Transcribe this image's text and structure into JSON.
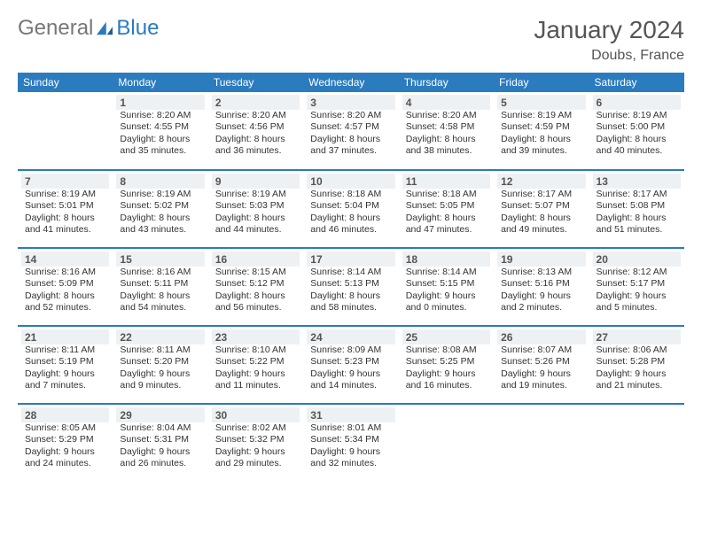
{
  "brand": {
    "part1": "General",
    "part2": "Blue"
  },
  "title": "January 2024",
  "location": "Doubs, France",
  "colors": {
    "header_bg": "#2b7bbf",
    "header_text": "#ffffff",
    "daynum_bg": "#eef1f3",
    "rule": "#2b7bbf",
    "text": "#333333",
    "title_text": "#555555"
  },
  "typography": {
    "title_fontsize": 28,
    "location_fontsize": 16,
    "header_fontsize": 12,
    "daynum_fontsize": 12,
    "body_fontsize": 10.5
  },
  "days_of_week": [
    "Sunday",
    "Monday",
    "Tuesday",
    "Wednesday",
    "Thursday",
    "Friday",
    "Saturday"
  ],
  "weeks": [
    [
      null,
      {
        "n": "1",
        "sunrise": "8:20 AM",
        "sunset": "4:55 PM",
        "daylight": "8 hours and 35 minutes."
      },
      {
        "n": "2",
        "sunrise": "8:20 AM",
        "sunset": "4:56 PM",
        "daylight": "8 hours and 36 minutes."
      },
      {
        "n": "3",
        "sunrise": "8:20 AM",
        "sunset": "4:57 PM",
        "daylight": "8 hours and 37 minutes."
      },
      {
        "n": "4",
        "sunrise": "8:20 AM",
        "sunset": "4:58 PM",
        "daylight": "8 hours and 38 minutes."
      },
      {
        "n": "5",
        "sunrise": "8:19 AM",
        "sunset": "4:59 PM",
        "daylight": "8 hours and 39 minutes."
      },
      {
        "n": "6",
        "sunrise": "8:19 AM",
        "sunset": "5:00 PM",
        "daylight": "8 hours and 40 minutes."
      }
    ],
    [
      {
        "n": "7",
        "sunrise": "8:19 AM",
        "sunset": "5:01 PM",
        "daylight": "8 hours and 41 minutes."
      },
      {
        "n": "8",
        "sunrise": "8:19 AM",
        "sunset": "5:02 PM",
        "daylight": "8 hours and 43 minutes."
      },
      {
        "n": "9",
        "sunrise": "8:19 AM",
        "sunset": "5:03 PM",
        "daylight": "8 hours and 44 minutes."
      },
      {
        "n": "10",
        "sunrise": "8:18 AM",
        "sunset": "5:04 PM",
        "daylight": "8 hours and 46 minutes."
      },
      {
        "n": "11",
        "sunrise": "8:18 AM",
        "sunset": "5:05 PM",
        "daylight": "8 hours and 47 minutes."
      },
      {
        "n": "12",
        "sunrise": "8:17 AM",
        "sunset": "5:07 PM",
        "daylight": "8 hours and 49 minutes."
      },
      {
        "n": "13",
        "sunrise": "8:17 AM",
        "sunset": "5:08 PM",
        "daylight": "8 hours and 51 minutes."
      }
    ],
    [
      {
        "n": "14",
        "sunrise": "8:16 AM",
        "sunset": "5:09 PM",
        "daylight": "8 hours and 52 minutes."
      },
      {
        "n": "15",
        "sunrise": "8:16 AM",
        "sunset": "5:11 PM",
        "daylight": "8 hours and 54 minutes."
      },
      {
        "n": "16",
        "sunrise": "8:15 AM",
        "sunset": "5:12 PM",
        "daylight": "8 hours and 56 minutes."
      },
      {
        "n": "17",
        "sunrise": "8:14 AM",
        "sunset": "5:13 PM",
        "daylight": "8 hours and 58 minutes."
      },
      {
        "n": "18",
        "sunrise": "8:14 AM",
        "sunset": "5:15 PM",
        "daylight": "9 hours and 0 minutes."
      },
      {
        "n": "19",
        "sunrise": "8:13 AM",
        "sunset": "5:16 PM",
        "daylight": "9 hours and 2 minutes."
      },
      {
        "n": "20",
        "sunrise": "8:12 AM",
        "sunset": "5:17 PM",
        "daylight": "9 hours and 5 minutes."
      }
    ],
    [
      {
        "n": "21",
        "sunrise": "8:11 AM",
        "sunset": "5:19 PM",
        "daylight": "9 hours and 7 minutes."
      },
      {
        "n": "22",
        "sunrise": "8:11 AM",
        "sunset": "5:20 PM",
        "daylight": "9 hours and 9 minutes."
      },
      {
        "n": "23",
        "sunrise": "8:10 AM",
        "sunset": "5:22 PM",
        "daylight": "9 hours and 11 minutes."
      },
      {
        "n": "24",
        "sunrise": "8:09 AM",
        "sunset": "5:23 PM",
        "daylight": "9 hours and 14 minutes."
      },
      {
        "n": "25",
        "sunrise": "8:08 AM",
        "sunset": "5:25 PM",
        "daylight": "9 hours and 16 minutes."
      },
      {
        "n": "26",
        "sunrise": "8:07 AM",
        "sunset": "5:26 PM",
        "daylight": "9 hours and 19 minutes."
      },
      {
        "n": "27",
        "sunrise": "8:06 AM",
        "sunset": "5:28 PM",
        "daylight": "9 hours and 21 minutes."
      }
    ],
    [
      {
        "n": "28",
        "sunrise": "8:05 AM",
        "sunset": "5:29 PM",
        "daylight": "9 hours and 24 minutes."
      },
      {
        "n": "29",
        "sunrise": "8:04 AM",
        "sunset": "5:31 PM",
        "daylight": "9 hours and 26 minutes."
      },
      {
        "n": "30",
        "sunrise": "8:02 AM",
        "sunset": "5:32 PM",
        "daylight": "9 hours and 29 minutes."
      },
      {
        "n": "31",
        "sunrise": "8:01 AM",
        "sunset": "5:34 PM",
        "daylight": "9 hours and 32 minutes."
      },
      null,
      null,
      null
    ]
  ],
  "labels": {
    "sunrise": "Sunrise:",
    "sunset": "Sunset:",
    "daylight": "Daylight:"
  }
}
